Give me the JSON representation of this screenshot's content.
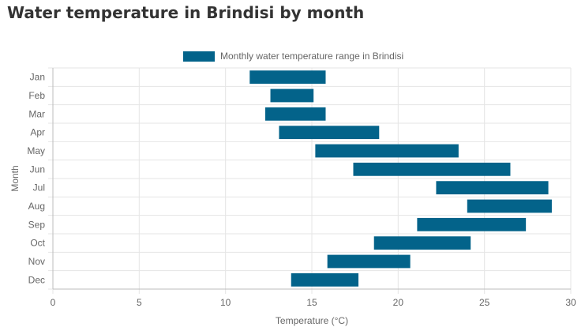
{
  "page": {
    "title": "Water temperature in Brindisi by month"
  },
  "chart_data": {
    "type": "bar",
    "orientation": "horizontal",
    "categories": [
      "Jan",
      "Feb",
      "Mar",
      "Apr",
      "May",
      "Jun",
      "Jul",
      "Aug",
      "Sep",
      "Oct",
      "Nov",
      "Dec"
    ],
    "series": [
      {
        "name": "Monthly water temperature range in Brindisi",
        "color": "#03638a",
        "ranges": [
          [
            11.4,
            15.8
          ],
          [
            12.6,
            15.1
          ],
          [
            12.3,
            15.8
          ],
          [
            13.1,
            18.9
          ],
          [
            15.2,
            23.5
          ],
          [
            17.4,
            26.5
          ],
          [
            22.2,
            28.7
          ],
          [
            24.0,
            28.9
          ],
          [
            21.1,
            27.4
          ],
          [
            18.6,
            24.2
          ],
          [
            15.9,
            20.7
          ],
          [
            13.8,
            17.7
          ]
        ]
      }
    ],
    "xlabel": "Temperature (°C)",
    "ylabel": "Month",
    "xlim": [
      0,
      30
    ],
    "xticks": [
      0,
      5,
      10,
      15,
      20,
      25,
      30
    ],
    "grid": true,
    "legend_position": "top-center"
  }
}
